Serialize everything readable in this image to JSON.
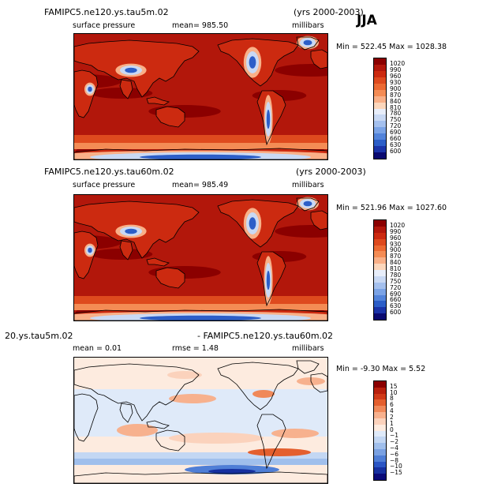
{
  "header": {
    "season": "JJA"
  },
  "chart_data": [
    {
      "type": "heatmap",
      "name": "panel-1",
      "title": "FAMIPC5.ne120.ys.tau5m.02",
      "years": "(yrs 2000-2003)",
      "field": "surface pressure",
      "mean_text": "mean= 985.50",
      "units": "millibars",
      "minmax_text": "Min = 522.45 Max = 1028.38",
      "min": 522.45,
      "max": 1028.38,
      "levels": [
        "1020",
        "990",
        "960",
        "930",
        "900",
        "870",
        "840",
        "810",
        "780",
        "750",
        "720",
        "690",
        "660",
        "630",
        "600"
      ],
      "colors": [
        "#8b0000",
        "#b2170b",
        "#cc2a10",
        "#de4a1e",
        "#ec6a33",
        "#f48c55",
        "#f9b088",
        "#fcd7bc",
        "#e8eefa",
        "#c9d9f4",
        "#a4c0ee",
        "#7ba3e6",
        "#5283da",
        "#2c5ec8",
        "#1a33a8",
        "#0a0a70"
      ]
    },
    {
      "type": "heatmap",
      "name": "panel-2",
      "title": "FAMIPC5.ne120.ys.tau60m.02",
      "years": "(yrs 2000-2003)",
      "field": "surface pressure",
      "mean_text": "mean= 985.49",
      "units": "millibars",
      "minmax_text": "Min = 521.96 Max = 1027.60",
      "min": 521.96,
      "max": 1027.6,
      "levels": [
        "1020",
        "990",
        "960",
        "930",
        "900",
        "870",
        "840",
        "810",
        "780",
        "750",
        "720",
        "690",
        "660",
        "630",
        "600"
      ],
      "colors": [
        "#8b0000",
        "#b2170b",
        "#cc2a10",
        "#de4a1e",
        "#ec6a33",
        "#f48c55",
        "#f9b088",
        "#fcd7bc",
        "#e8eefa",
        "#c9d9f4",
        "#a4c0ee",
        "#7ba3e6",
        "#5283da",
        "#2c5ec8",
        "#1a33a8",
        "#0a0a70"
      ]
    },
    {
      "type": "heatmap",
      "name": "panel-diff",
      "title_left": "20.ys.tau5m.02",
      "title_right": "- FAMIPC5.ne120.ys.tau60m.02",
      "mean_text": "mean =     0.01",
      "rmse_text": "rmse =    1.48",
      "units": "millibars",
      "minmax_text": "Min =   -9.30 Max =    5.52",
      "min": -9.3,
      "max": 5.52,
      "mean": 0.01,
      "rmse": 1.48,
      "levels": [
        "15",
        "10",
        "8",
        "6",
        "4",
        "2",
        "1",
        "0",
        "−1",
        "−2",
        "−4",
        "−6",
        "−8",
        "−10",
        "−15"
      ],
      "colors": [
        "#8b0000",
        "#b8200d",
        "#d03a18",
        "#e45f2e",
        "#f0895a",
        "#f7b18e",
        "#fbd2bc",
        "#fdebdf",
        "#dfeaf9",
        "#c3d7f3",
        "#a0bfec",
        "#7aa1e2",
        "#4f7ed6",
        "#2a55c4",
        "#1630a0",
        "#0a0a78"
      ]
    }
  ]
}
